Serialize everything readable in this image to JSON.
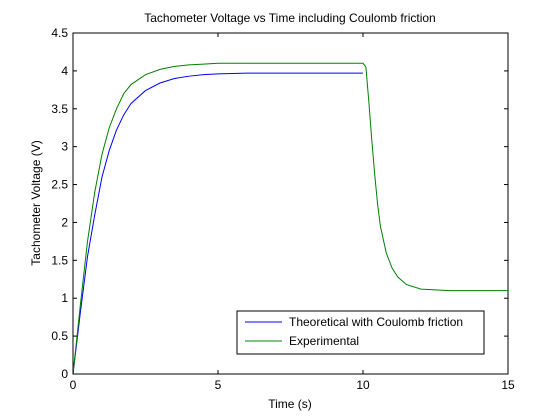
{
  "chart_data": {
    "type": "line",
    "title": "Tachometer Voltage vs Time including Coulomb friction",
    "xlabel": "Time (s)",
    "ylabel": "Tachometer Voltage (V)",
    "xlim": [
      0,
      15
    ],
    "ylim": [
      0,
      4.5
    ],
    "xticks": [
      0,
      5,
      10,
      15
    ],
    "yticks": [
      0,
      0.5,
      1,
      1.5,
      2,
      2.5,
      3,
      3.5,
      4,
      4.5
    ],
    "xtick_labels": [
      "0",
      "5",
      "10",
      "15"
    ],
    "ytick_labels": [
      "0",
      "0.5",
      "1",
      "1.5",
      "2",
      "2.5",
      "3",
      "3.5",
      "4",
      "4.5"
    ],
    "grid": false,
    "legend_position": "bottom-right",
    "series": [
      {
        "name": "Theoretical with Coulomb friction",
        "color": "#0000ff",
        "x": [
          0,
          0.25,
          0.5,
          0.75,
          1.0,
          1.25,
          1.5,
          1.75,
          2.0,
          2.5,
          3.0,
          3.5,
          4.0,
          4.5,
          5.0,
          6.0,
          7.0,
          8.0,
          9.0,
          10.0
        ],
        "y": [
          0,
          0.8,
          1.55,
          2.1,
          2.6,
          2.95,
          3.22,
          3.42,
          3.57,
          3.74,
          3.84,
          3.9,
          3.93,
          3.95,
          3.96,
          3.97,
          3.97,
          3.97,
          3.97,
          3.97
        ]
      },
      {
        "name": "Experimental",
        "color": "#008000",
        "x": [
          0,
          0.25,
          0.5,
          0.75,
          1.0,
          1.25,
          1.5,
          1.75,
          2.0,
          2.5,
          3.0,
          3.5,
          4.0,
          4.5,
          5.0,
          6.0,
          7.0,
          8.0,
          9.0,
          10.0,
          10.1,
          10.2,
          10.3,
          10.4,
          10.5,
          10.6,
          10.8,
          11.0,
          11.2,
          11.5,
          12.0,
          12.5,
          13.0,
          14.0,
          15.0
        ],
        "y": [
          0,
          0.9,
          1.75,
          2.4,
          2.9,
          3.25,
          3.5,
          3.7,
          3.82,
          3.95,
          4.02,
          4.06,
          4.08,
          4.09,
          4.1,
          4.1,
          4.1,
          4.1,
          4.1,
          4.1,
          4.05,
          3.6,
          3.1,
          2.65,
          2.25,
          1.95,
          1.6,
          1.4,
          1.28,
          1.18,
          1.12,
          1.11,
          1.1,
          1.1,
          1.1
        ]
      }
    ]
  }
}
